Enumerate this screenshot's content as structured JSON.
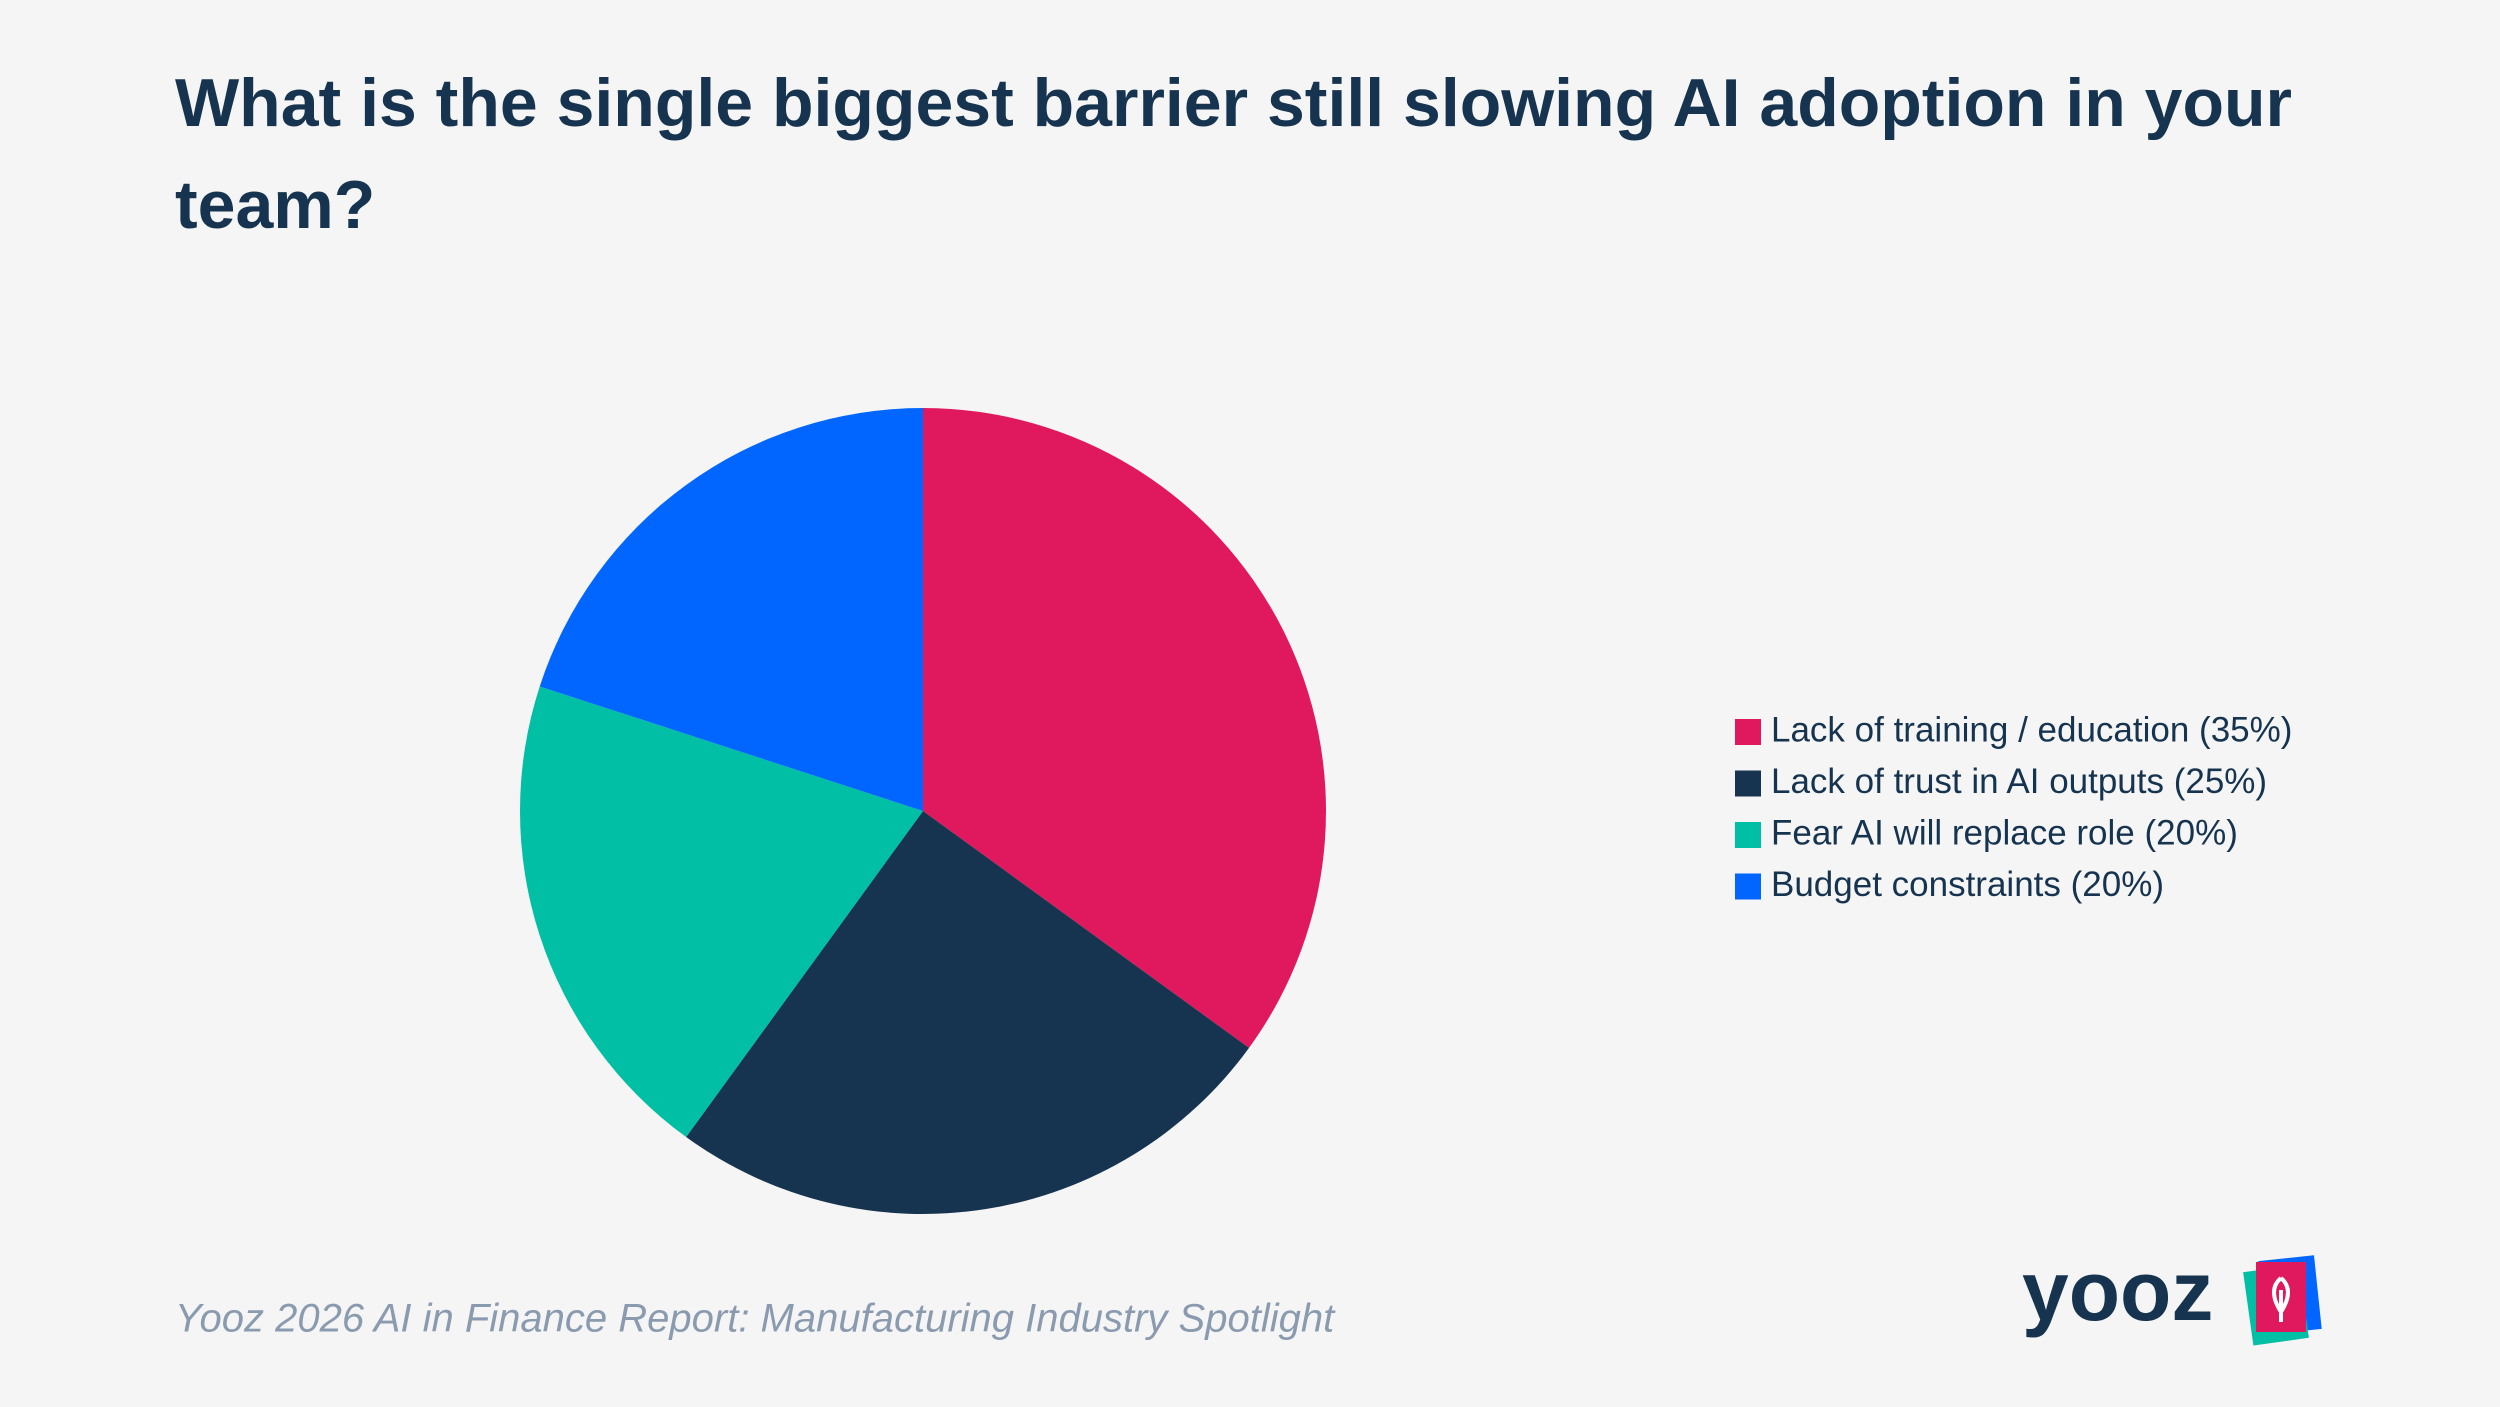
{
  "chart_data": {
    "type": "pie",
    "title": "What is the single biggest barrier still slowing AI adoption in your team?",
    "categories": [
      "Lack of training / education (35%)",
      "Lack of trust in AI outputs (25%)",
      "Fear AI will replace role (20%)",
      "Budget constraints (20%)"
    ],
    "values": [
      35,
      25,
      20,
      20
    ],
    "colors": [
      "#e0195e",
      "#16344f",
      "#00bfa5",
      "#0066ff"
    ],
    "source": "Yooz 2026 AI in Finance Report: Manufacturing Industry Spotlight",
    "logo": "yooz"
  }
}
